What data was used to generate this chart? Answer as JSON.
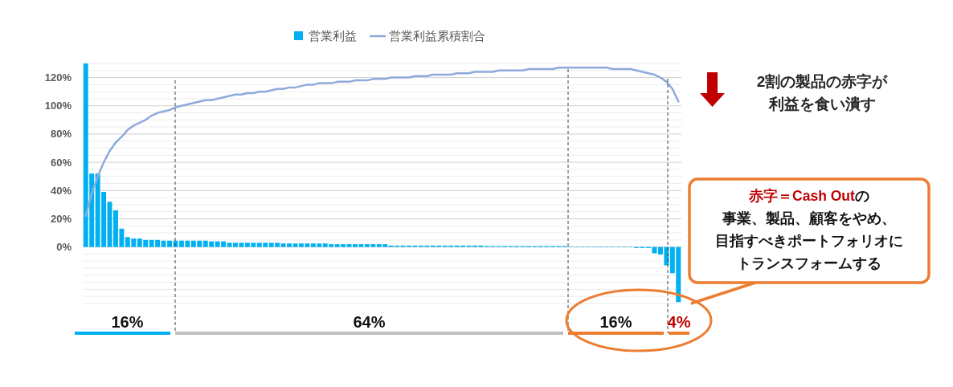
{
  "chart_data": {
    "type": "bar",
    "legend": "top",
    "ylim": [
      -40,
      130
    ],
    "yticks": [
      {
        "value": -40,
        "label": null
      },
      {
        "value": -35,
        "label": null
      },
      {
        "value": -30,
        "label": null
      },
      {
        "value": -25,
        "label": null
      },
      {
        "value": -20,
        "label": null
      },
      {
        "value": -15,
        "label": null
      },
      {
        "value": -10,
        "label": null
      },
      {
        "value": -5,
        "label": null
      },
      {
        "value": 0,
        "label": "0%"
      },
      {
        "value": 5,
        "label": null
      },
      {
        "value": 10,
        "label": null
      },
      {
        "value": 15,
        "label": null
      },
      {
        "value": 20,
        "label": "20%"
      },
      {
        "value": 25,
        "label": null
      },
      {
        "value": 30,
        "label": null
      },
      {
        "value": 35,
        "label": null
      },
      {
        "value": 40,
        "label": "40%"
      },
      {
        "value": 45,
        "label": null
      },
      {
        "value": 50,
        "label": null
      },
      {
        "value": 55,
        "label": null
      },
      {
        "value": 60,
        "label": "60%"
      },
      {
        "value": 65,
        "label": null
      },
      {
        "value": 70,
        "label": null
      },
      {
        "value": 75,
        "label": null
      },
      {
        "value": 80,
        "label": "80%"
      },
      {
        "value": 85,
        "label": null
      },
      {
        "value": 90,
        "label": null
      },
      {
        "value": 95,
        "label": null
      },
      {
        "value": 100,
        "label": "100%"
      },
      {
        "value": 105,
        "label": null
      },
      {
        "value": 110,
        "label": null
      },
      {
        "value": 115,
        "label": null
      },
      {
        "value": 120,
        "label": "120%"
      },
      {
        "value": 125,
        "label": null
      },
      {
        "value": 130,
        "label": null
      }
    ],
    "grid": "y",
    "tick_labels": "y",
    "categories": [
      null,
      null,
      null,
      null,
      null,
      null,
      null,
      null,
      null,
      null,
      null,
      null,
      null,
      null,
      null,
      null,
      null,
      null,
      null,
      null,
      null,
      null,
      null,
      null,
      null,
      null,
      null,
      null,
      null,
      null,
      null,
      null,
      null,
      null,
      null,
      null,
      null,
      null,
      null,
      null,
      null,
      null,
      null,
      null,
      null,
      null,
      null,
      null,
      null,
      null,
      null,
      null,
      null,
      null,
      null,
      null,
      null,
      null,
      null,
      null,
      null,
      null,
      null,
      null,
      null,
      null,
      null,
      null,
      null,
      null,
      null,
      null,
      null,
      null,
      null,
      null,
      null,
      null,
      null,
      null,
      null,
      null,
      null,
      null,
      null,
      null,
      null,
      null,
      null,
      null,
      null,
      null,
      null,
      null,
      null,
      null,
      null,
      null,
      null,
      null
    ],
    "series": [
      {
        "name": "営業利益",
        "color": "#00b0f0",
        "values": [
          130,
          52,
          52,
          39,
          32,
          26,
          13,
          7,
          6,
          6,
          5,
          5,
          5,
          4.5,
          4.5,
          4.5,
          4.5,
          4.5,
          4.5,
          4.5,
          4.5,
          4,
          4,
          4,
          3,
          3,
          3,
          3,
          3,
          3,
          3,
          3,
          3,
          2.5,
          2.5,
          2.5,
          2.5,
          2.5,
          2.5,
          2.5,
          2.5,
          2,
          2,
          2,
          2,
          2,
          2,
          2,
          2,
          2,
          2,
          1,
          1,
          1,
          1,
          1,
          1,
          1,
          1,
          1,
          1,
          1,
          1,
          1,
          1,
          1,
          1,
          0.7,
          0.7,
          0.7,
          0.7,
          0.7,
          0.7,
          0.7,
          0.7,
          0.7,
          0.7,
          0.7,
          0.7,
          0.7,
          0.7,
          0.3,
          0.3,
          0.3,
          0.3,
          0.3,
          0.3,
          0.3,
          0.3,
          0.3,
          0.3,
          0.3,
          -0.7,
          -0.7,
          -0.7,
          -4.4,
          -5.3,
          -13,
          -18.6,
          -39
        ]
      },
      {
        "name": "営業利益累積割合",
        "type": "line",
        "color": "#8eaadb",
        "values": [
          22,
          38,
          50,
          60,
          68,
          74,
          78,
          83,
          86,
          88,
          90,
          93,
          95,
          96,
          97,
          99,
          100,
          101,
          102,
          103,
          104,
          104,
          105,
          106,
          107,
          108,
          108,
          109,
          109,
          110,
          110,
          111,
          112,
          112,
          113,
          113,
          114,
          115,
          115,
          116,
          116,
          116,
          117,
          117,
          117,
          118,
          118,
          118,
          119,
          119,
          119,
          120,
          120,
          120,
          120,
          121,
          121,
          121,
          122,
          122,
          122,
          122,
          123,
          123,
          123,
          124,
          124,
          124,
          124,
          125,
          125,
          125,
          125,
          125,
          126,
          126,
          126,
          126,
          126,
          127,
          127,
          127,
          127,
          127,
          127,
          127,
          127,
          127,
          126,
          126,
          126,
          126,
          125,
          124,
          123,
          122,
          120,
          117,
          112,
          103
        ]
      }
    ],
    "annotations": [
      "2割の製品の赤字が利益を食い潰す",
      "赤字＝Cash Outの事業、製品、顧客をやめ、目指すべきポートフォリオにトランスフォームする",
      "16%",
      "64%",
      "16%",
      "4%"
    ]
  }
}
